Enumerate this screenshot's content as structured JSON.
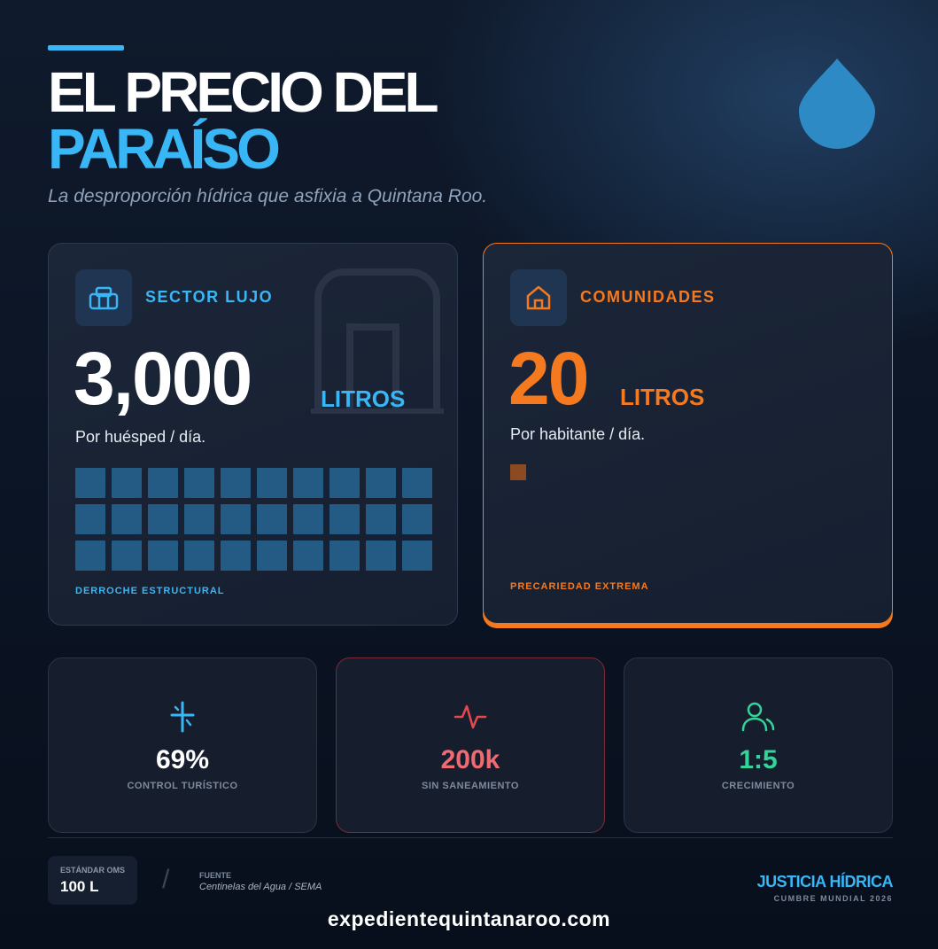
{
  "header": {
    "title_line1": "EL PRECIO DEL",
    "title_line2": "PARAÍSO",
    "subtitle": "La desproporción hídrica que asfixia a Quintana Roo.",
    "icon": "water-drop-icon"
  },
  "cards": {
    "lujo": {
      "label": "SECTOR LUJO",
      "value": "3,000",
      "unit": "LITROS",
      "caption": "Por huésped / día.",
      "footer": "DERROCHE ESTRUCTURAL",
      "icon": "suitcase-icon",
      "accent": "#38b6f5",
      "grid_units": 30
    },
    "comunidades": {
      "label": "COMUNIDADES",
      "value": "20",
      "unit": "LITROS",
      "caption": "Por habitante / día.",
      "footer": "PRECARIEDAD EXTREMA",
      "icon": "house-icon",
      "accent": "#f5791f",
      "grid_units": 1
    }
  },
  "stats": [
    {
      "value": "69%",
      "label": "CONTROL TURÍSTICO",
      "icon": "palm-tree-icon",
      "color": "#ffffff",
      "icon_color": "#38b6f5"
    },
    {
      "value": "200k",
      "label": "SIN SANEAMIENTO",
      "icon": "pulse-icon",
      "color": "#f06a72",
      "icon_color": "#e5484d"
    },
    {
      "value": "1:5",
      "label": "CRECIMIENTO",
      "icon": "users-icon",
      "color": "#34d399",
      "icon_color": "#34d399"
    }
  ],
  "footer": {
    "standard_label": "ESTÁNDAR OMS",
    "standard_value": "100 L",
    "source_label": "FUENTE",
    "source_value": "Centinelas del Agua / SEMA",
    "brand": "JUSTICIA HÍDRICA",
    "brand_sub": "CUMBRE MUNDIAL 2026",
    "website": "expedientequintanaroo.com"
  }
}
